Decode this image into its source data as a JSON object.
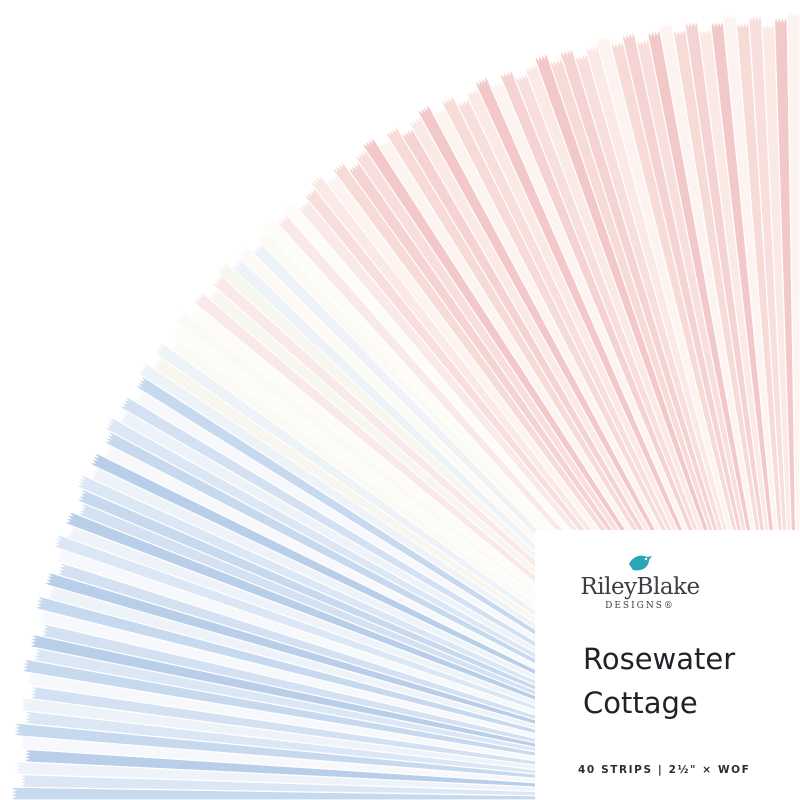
{
  "logo": {
    "name": "RileyBlake",
    "sub": "DESIGNS®"
  },
  "title": [
    "Rosewater",
    "Cottage"
  ],
  "spec": "40 STRIPS | 2½\" × WOF"
}
